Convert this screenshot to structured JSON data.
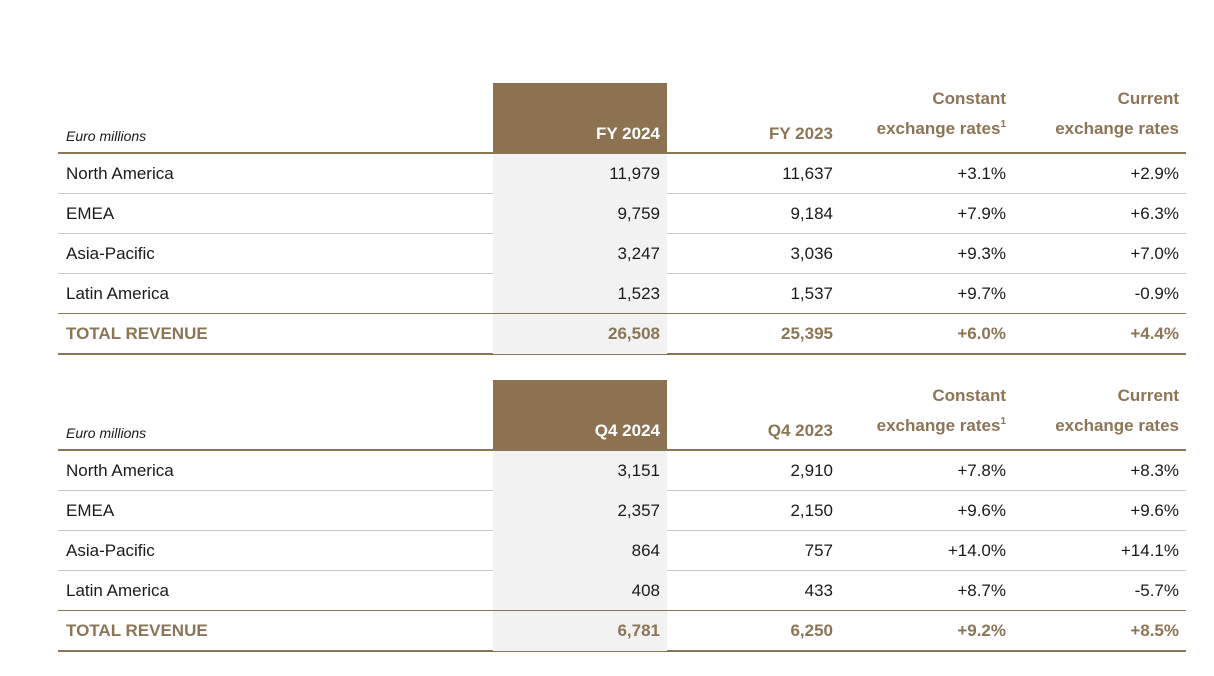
{
  "tables": [
    {
      "unit": "Euro millions",
      "headers": {
        "current": "FY 2024",
        "previous": "FY 2023",
        "constant_line1": "Constant",
        "constant_line2": "exchange rates",
        "constant_sup": "1",
        "current_fx_line1": "Current",
        "current_fx_line2": "exchange rates"
      },
      "rows": [
        {
          "region": "North America",
          "current": "11,979",
          "previous": "11,637",
          "constant": "+3.1%",
          "current_fx": "+2.9%"
        },
        {
          "region": "EMEA",
          "current": "9,759",
          "previous": "9,184",
          "constant": "+7.9%",
          "current_fx": "+6.3%"
        },
        {
          "region": "Asia-Pacific",
          "current": "3,247",
          "previous": "3,036",
          "constant": "+9.3%",
          "current_fx": "+7.0%"
        },
        {
          "region": "Latin America",
          "current": "1,523",
          "previous": "1,537",
          "constant": "+9.7%",
          "current_fx": "-0.9%"
        }
      ],
      "total": {
        "region": "TOTAL REVENUE",
        "current": "26,508",
        "previous": "25,395",
        "constant": "+6.0%",
        "current_fx": "+4.4%"
      }
    },
    {
      "unit": "Euro millions",
      "headers": {
        "current": "Q4 2024",
        "previous": "Q4 2023",
        "constant_line1": "Constant",
        "constant_line2": "exchange rates",
        "constant_sup": "1",
        "current_fx_line1": "Current",
        "current_fx_line2": "exchange rates"
      },
      "rows": [
        {
          "region": "North America",
          "current": "3,151",
          "previous": "2,910",
          "constant": "+7.8%",
          "current_fx": "+8.3%"
        },
        {
          "region": "EMEA",
          "current": "2,357",
          "previous": "2,150",
          "constant": "+9.6%",
          "current_fx": "+9.6%"
        },
        {
          "region": "Asia-Pacific",
          "current": "864",
          "previous": "757",
          "constant": "+14.0%",
          "current_fx": "+14.1%"
        },
        {
          "region": "Latin America",
          "current": "408",
          "previous": "433",
          "constant": "+8.7%",
          "current_fx": "-5.7%"
        }
      ],
      "total": {
        "region": "TOTAL REVENUE",
        "current": "6,781",
        "previous": "6,250",
        "constant": "+9.2%",
        "current_fx": "+8.5%"
      }
    }
  ]
}
